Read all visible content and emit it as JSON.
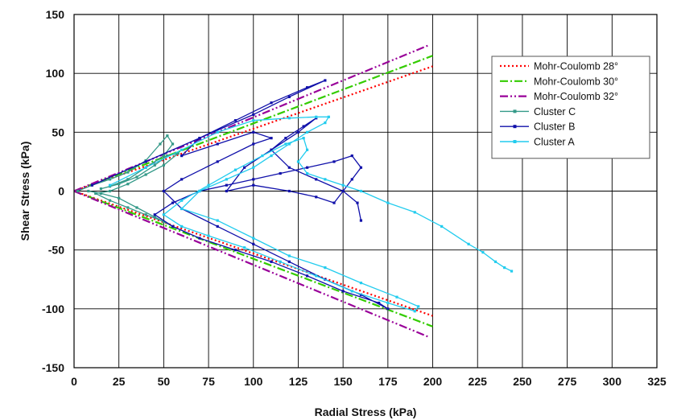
{
  "chart_data": {
    "type": "line",
    "title": "",
    "xlabel": "Radial Stress (kPa)",
    "ylabel": "Shear Stress (kPa)",
    "xlim": [
      0,
      325
    ],
    "ylim": [
      -150,
      150
    ],
    "xticks": [
      0,
      25,
      50,
      75,
      100,
      125,
      150,
      175,
      200,
      225,
      250,
      275,
      300,
      325
    ],
    "yticks": [
      150,
      100,
      50,
      0,
      -50,
      -100,
      -150
    ],
    "grid": true,
    "legend_position": "top-right",
    "series": [
      {
        "name": "Mohr-Coulomb 28°",
        "kind": "envelope",
        "color": "#ff0000",
        "dash": "dotted",
        "points": [
          [
            0,
            0
          ],
          [
            200,
            106
          ]
        ],
        "points_lower": [
          [
            0,
            0
          ],
          [
            200,
            -106
          ]
        ]
      },
      {
        "name": "Mohr-Coulomb 30°",
        "kind": "envelope",
        "color": "#33cc00",
        "dash": "dashdot",
        "points": [
          [
            0,
            0
          ],
          [
            200,
            115
          ]
        ],
        "points_lower": [
          [
            0,
            0
          ],
          [
            200,
            -115
          ]
        ]
      },
      {
        "name": "Mohr-Coulomb 32°",
        "kind": "envelope",
        "color": "#990099",
        "dash": "dashdotdot",
        "points": [
          [
            0,
            0
          ],
          [
            198,
            124
          ]
        ],
        "points_lower": [
          [
            0,
            0
          ],
          [
            198,
            -124
          ]
        ]
      },
      {
        "name": "Cluster C",
        "kind": "cluster",
        "color": "#339988",
        "points": [
          [
            2,
            0
          ],
          [
            10,
            5
          ],
          [
            20,
            10
          ],
          [
            30,
            16
          ],
          [
            40,
            26
          ],
          [
            48,
            40
          ],
          [
            52,
            47
          ],
          [
            55,
            40
          ],
          [
            50,
            30
          ],
          [
            40,
            20
          ],
          [
            30,
            10
          ],
          [
            20,
            4
          ],
          [
            15,
            2
          ],
          [
            25,
            6
          ],
          [
            35,
            12
          ],
          [
            45,
            22
          ],
          [
            52,
            30
          ],
          [
            58,
            32
          ],
          [
            50,
            22
          ],
          [
            40,
            14
          ],
          [
            30,
            6
          ],
          [
            20,
            0
          ],
          [
            12,
            -2
          ],
          [
            20,
            -8
          ],
          [
            30,
            -14
          ],
          [
            40,
            -20
          ],
          [
            50,
            -26
          ],
          [
            55,
            -30
          ],
          [
            45,
            -22
          ],
          [
            35,
            -14
          ],
          [
            25,
            -6
          ],
          [
            15,
            -2
          ],
          [
            8,
            0
          ]
        ]
      },
      {
        "name": "Cluster B",
        "kind": "cluster",
        "color": "#1010aa",
        "points": [
          [
            10,
            5
          ],
          [
            40,
            25
          ],
          [
            70,
            45
          ],
          [
            100,
            65
          ],
          [
            120,
            80
          ],
          [
            140,
            94
          ],
          [
            130,
            88
          ],
          [
            110,
            75
          ],
          [
            90,
            60
          ],
          [
            70,
            45
          ],
          [
            60,
            30
          ],
          [
            80,
            40
          ],
          [
            100,
            50
          ],
          [
            110,
            45
          ],
          [
            100,
            40
          ],
          [
            80,
            25
          ],
          [
            60,
            10
          ],
          [
            50,
            0
          ],
          [
            60,
            -15
          ],
          [
            80,
            -30
          ],
          [
            100,
            -45
          ],
          [
            120,
            -60
          ],
          [
            140,
            -75
          ],
          [
            160,
            -88
          ],
          [
            175,
            -100
          ],
          [
            170,
            -95
          ],
          [
            150,
            -85
          ],
          [
            130,
            -72
          ],
          [
            110,
            -60
          ],
          [
            90,
            -50
          ],
          [
            70,
            -40
          ],
          [
            55,
            -30
          ],
          [
            45,
            -20
          ],
          [
            55,
            -10
          ],
          [
            70,
            0
          ],
          [
            85,
            5
          ],
          [
            100,
            10
          ],
          [
            115,
            15
          ],
          [
            130,
            20
          ],
          [
            145,
            25
          ],
          [
            155,
            30
          ],
          [
            160,
            20
          ],
          [
            155,
            10
          ],
          [
            150,
            0
          ],
          [
            145,
            -10
          ],
          [
            135,
            -5
          ],
          [
            120,
            0
          ],
          [
            100,
            5
          ],
          [
            85,
            0
          ],
          [
            95,
            20
          ],
          [
            110,
            35
          ],
          [
            125,
            50
          ],
          [
            135,
            62
          ],
          [
            128,
            55
          ],
          [
            118,
            45
          ],
          [
            110,
            35
          ],
          [
            120,
            20
          ],
          [
            135,
            10
          ],
          [
            150,
            0
          ],
          [
            158,
            -10
          ],
          [
            160,
            -25
          ]
        ]
      },
      {
        "name": "Cluster A",
        "kind": "cluster",
        "color": "#22ccee",
        "points": [
          [
            20,
            5
          ],
          [
            40,
            20
          ],
          [
            60,
            35
          ],
          [
            80,
            50
          ],
          [
            100,
            60
          ],
          [
            120,
            62
          ],
          [
            135,
            63
          ],
          [
            142,
            63
          ],
          [
            140,
            58
          ],
          [
            130,
            50
          ],
          [
            120,
            40
          ],
          [
            110,
            30
          ],
          [
            100,
            20
          ],
          [
            85,
            10
          ],
          [
            70,
            0
          ],
          [
            60,
            -15
          ],
          [
            80,
            -25
          ],
          [
            100,
            -40
          ],
          [
            120,
            -55
          ],
          [
            140,
            -65
          ],
          [
            160,
            -78
          ],
          [
            180,
            -90
          ],
          [
            192,
            -98
          ],
          [
            190,
            -102
          ],
          [
            175,
            -95
          ],
          [
            155,
            -85
          ],
          [
            135,
            -72
          ],
          [
            115,
            -60
          ],
          [
            95,
            -48
          ],
          [
            75,
            -38
          ],
          [
            60,
            -30
          ],
          [
            50,
            -20
          ],
          [
            60,
            -8
          ],
          [
            75,
            5
          ],
          [
            90,
            18
          ],
          [
            105,
            30
          ],
          [
            118,
            40
          ],
          [
            128,
            45
          ],
          [
            130,
            35
          ],
          [
            125,
            25
          ],
          [
            130,
            15
          ],
          [
            140,
            10
          ],
          [
            150,
            5
          ],
          [
            160,
            0
          ],
          [
            175,
            -10
          ],
          [
            190,
            -18
          ],
          [
            205,
            -30
          ],
          [
            220,
            -45
          ],
          [
            228,
            -52
          ],
          [
            235,
            -60
          ],
          [
            240,
            -65
          ],
          [
            244,
            -68
          ]
        ]
      }
    ]
  }
}
